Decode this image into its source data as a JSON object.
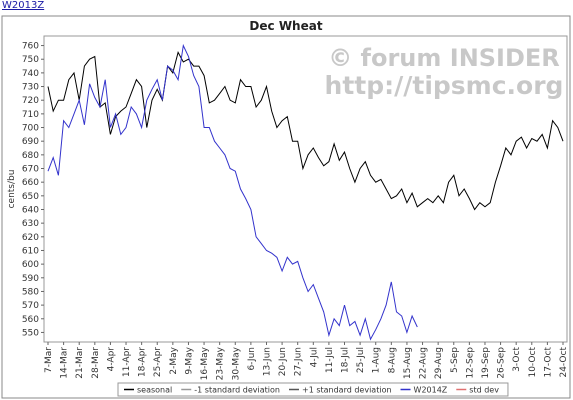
{
  "link": "W2013Z",
  "chart_data": {
    "type": "line",
    "title": "Dec Wheat",
    "y_label": "cents/bu",
    "annotations": [
      "© forum INSIDER",
      "http://tipsmc.org"
    ],
    "categories": [
      "7-Mar",
      null,
      null,
      "14-Mar",
      null,
      null,
      "21-Mar",
      null,
      null,
      "28-Mar",
      null,
      null,
      "4-Apr",
      null,
      null,
      "11-Apr",
      null,
      null,
      "18-Apr",
      null,
      null,
      "25-Apr",
      null,
      null,
      "2-May",
      null,
      null,
      "9-May",
      null,
      null,
      "16-May",
      null,
      null,
      "23-May",
      null,
      null,
      "30-May",
      null,
      null,
      "6-Jun",
      null,
      null,
      "13-Jun",
      null,
      null,
      "20-Jun",
      null,
      null,
      "27-Jun",
      null,
      null,
      "4-Jul",
      null,
      null,
      "11-Jul",
      null,
      null,
      "18-Jul",
      null,
      null,
      "25-Jul",
      null,
      null,
      "1-Aug",
      null,
      null,
      "8-Aug",
      null,
      null,
      "15-Aug",
      null,
      null,
      "22-Aug",
      null,
      null,
      "29-Aug",
      null,
      null,
      "5-Sep",
      null,
      null,
      "12-Sep",
      null,
      null,
      "19-Sep",
      null,
      null,
      "26-Sep",
      null,
      null,
      "3-Oct",
      null,
      null,
      "10-Oct",
      null,
      null,
      "17-Oct",
      null,
      null,
      "24-Oct"
    ],
    "ylim": [
      543,
      767
    ],
    "yticks": [
      550,
      560,
      570,
      580,
      590,
      600,
      610,
      620,
      630,
      640,
      650,
      660,
      670,
      680,
      690,
      700,
      710,
      720,
      730,
      740,
      750,
      760
    ],
    "grid": false,
    "series": [
      {
        "name": "seasonal",
        "color": "#000000",
        "values": [
          730,
          712,
          720,
          720,
          735,
          740,
          720,
          745,
          750,
          752,
          715,
          718,
          695,
          708,
          712,
          715,
          725,
          735,
          730,
          700,
          720,
          728,
          720,
          745,
          740,
          755,
          748,
          750,
          745,
          745,
          738,
          718,
          720,
          725,
          730,
          720,
          718,
          735,
          730,
          730,
          715,
          720,
          730,
          712,
          700,
          705,
          708,
          690,
          690,
          670,
          680,
          685,
          678,
          672,
          675,
          688,
          676,
          682,
          670,
          660,
          670,
          675,
          665,
          660,
          662,
          655,
          648,
          650,
          655,
          645,
          652,
          642,
          645,
          648,
          645,
          650,
          645,
          660,
          665,
          650,
          655,
          648,
          640,
          645,
          642,
          645,
          660,
          672,
          685,
          680,
          690,
          693,
          685,
          692,
          690,
          695,
          685,
          705,
          700,
          690
        ]
      },
      {
        "name": "-1 standard deviation",
        "color": "#999999",
        "values": [
          null,
          null,
          null,
          null,
          null,
          null,
          null,
          null,
          null,
          null,
          null,
          null,
          null,
          null,
          null,
          null,
          null,
          null,
          null,
          null,
          null,
          null,
          null,
          null,
          null,
          null,
          null,
          null,
          null,
          null,
          null,
          null,
          null,
          null,
          null,
          null,
          null,
          null,
          null,
          null,
          null,
          null,
          null,
          null,
          null,
          null,
          null,
          null,
          null,
          null,
          null,
          null,
          null,
          null,
          null,
          null,
          null,
          null,
          null,
          null,
          null,
          null,
          null,
          null,
          null,
          null,
          null,
          null,
          null,
          null,
          null,
          null,
          null,
          null,
          null,
          null,
          null,
          null,
          null,
          null,
          null,
          null,
          null,
          null,
          null,
          null,
          null,
          null,
          null,
          null,
          null,
          null,
          null,
          null,
          null,
          null,
          null,
          null,
          null,
          null
        ]
      },
      {
        "name": "+1 standard deviation",
        "color": "#555555",
        "values": [
          null,
          null,
          null,
          null,
          null,
          null,
          null,
          null,
          null,
          null,
          null,
          null,
          null,
          null,
          null,
          null,
          null,
          null,
          null,
          null,
          null,
          null,
          null,
          null,
          null,
          null,
          null,
          null,
          null,
          null,
          null,
          null,
          null,
          null,
          null,
          null,
          null,
          null,
          null,
          null,
          null,
          null,
          null,
          null,
          null,
          null,
          null,
          null,
          null,
          null,
          null,
          null,
          null,
          null,
          null,
          null,
          null,
          null,
          null,
          null,
          null,
          null,
          null,
          null,
          null,
          null,
          null,
          null,
          null,
          null,
          null,
          null,
          null,
          null,
          null,
          null,
          null,
          null,
          null,
          null,
          null,
          null,
          null,
          null,
          null,
          null,
          null,
          null,
          null,
          null,
          null,
          null,
          null,
          null,
          null,
          null,
          null,
          null,
          null,
          null
        ]
      },
      {
        "name": "W2014Z",
        "color": "#3333cc",
        "values": [
          668,
          678,
          665,
          705,
          700,
          710,
          720,
          702,
          732,
          722,
          715,
          735,
          700,
          710,
          695,
          700,
          715,
          710,
          700,
          720,
          728,
          735,
          720,
          745,
          742,
          735,
          760,
          752,
          738,
          730,
          700,
          700,
          690,
          685,
          680,
          670,
          668,
          655,
          648,
          640,
          620,
          615,
          610,
          608,
          605,
          595,
          605,
          600,
          602,
          590,
          580,
          585,
          575,
          565,
          548,
          560,
          555,
          570,
          555,
          558,
          548,
          560,
          545,
          552,
          560,
          570,
          587,
          565,
          562,
          550,
          562,
          554,
          null,
          null,
          null,
          null,
          null,
          null,
          null,
          null,
          null,
          null,
          null,
          null,
          null,
          null,
          null,
          null,
          null,
          null,
          null,
          null,
          null,
          null,
          null,
          null,
          null,
          null,
          null,
          null
        ]
      },
      {
        "name": "std dev",
        "color": "#e07070",
        "values": [
          null,
          null,
          null,
          null,
          null,
          null,
          null,
          null,
          null,
          null,
          null,
          null,
          null,
          null,
          null,
          null,
          null,
          null,
          null,
          null,
          null,
          null,
          null,
          null,
          null,
          null,
          null,
          null,
          null,
          null,
          null,
          null,
          null,
          null,
          null,
          null,
          null,
          null,
          null,
          null,
          null,
          null,
          null,
          null,
          null,
          null,
          null,
          null,
          null,
          null,
          null,
          null,
          null,
          null,
          null,
          null,
          null,
          null,
          null,
          null,
          null,
          null,
          null,
          null,
          null,
          null,
          null,
          null,
          null,
          null,
          null,
          null,
          null,
          null,
          null,
          null,
          null,
          null,
          null,
          null,
          null,
          null,
          null,
          null,
          null,
          null,
          null,
          null,
          null,
          null,
          null,
          null,
          null,
          null,
          null,
          null,
          null,
          null,
          null,
          null
        ]
      }
    ]
  }
}
